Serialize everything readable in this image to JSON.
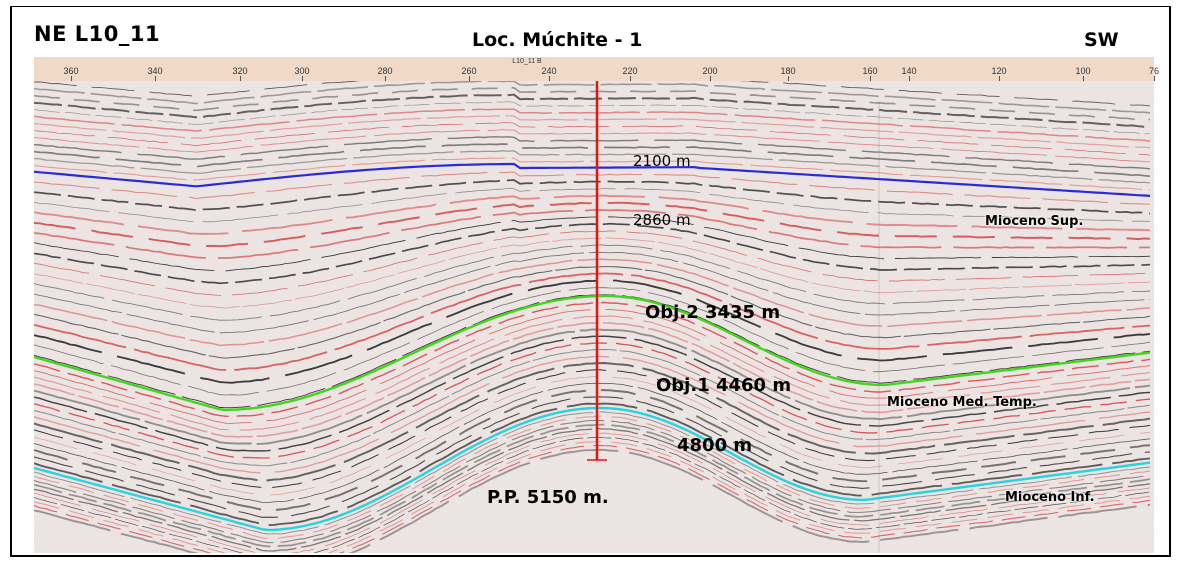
{
  "header": {
    "left": "NE  L10_11",
    "center": "Loc. Múchite - 1",
    "right": "SW"
  },
  "ruler": {
    "marker_label": "L10_11  B",
    "ticks": [
      "360",
      "340",
      "320",
      "300",
      "280",
      "260",
      "240",
      "220",
      "200",
      "180",
      "160",
      "140",
      "120",
      "100",
      "76"
    ]
  },
  "annotations": {
    "depth_2100": "2100 m",
    "depth_2860": "2860 m",
    "obj2": "Obj.2   3435 m",
    "obj1": "Obj.1   4460 m",
    "depth_4800": "4800 m",
    "pp": "P.P. 5150 m.",
    "mioceno_sup": "Mioceno Sup.",
    "mioceno_med": "Mioceno Med. Temp.",
    "mioceno_inf": "Mioceno Inf."
  },
  "colors": {
    "horizon_sup": "#2b2bd6",
    "horizon_med": "#44d61f",
    "horizon_inf": "#27d3e0",
    "well": "#e3140f",
    "ruler_bg": "#f0d9c6",
    "reflector_dark": "#111111",
    "reflector_red": "#d33a3a"
  }
}
